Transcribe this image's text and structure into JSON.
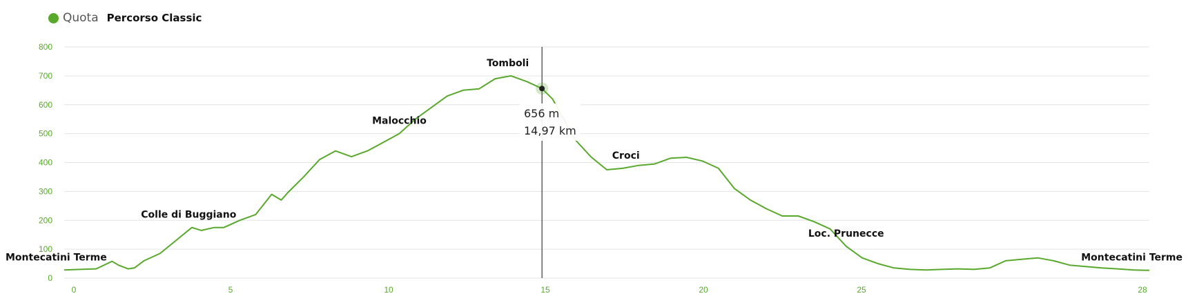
{
  "legend": {
    "series_name": "Quota",
    "route_name": "Percorso Classic",
    "color": "#57a82b"
  },
  "chart_data": {
    "type": "area",
    "series": [
      {
        "name": "Quota",
        "color": "#57a82b",
        "x": [
          0,
          0.5,
          1,
          1.5,
          1.7,
          2,
          2.2,
          2.5,
          3,
          3.5,
          4,
          4.3,
          4.7,
          5,
          5.5,
          6,
          6.5,
          6.8,
          7,
          7.5,
          8,
          8.5,
          9,
          9.5,
          10,
          10.5,
          11,
          11.5,
          12,
          12.5,
          13,
          13.5,
          14,
          14.5,
          14.97,
          15.3,
          15.6,
          16,
          16.5,
          17,
          17.5,
          18,
          18.5,
          19,
          19.5,
          20,
          20.5,
          21,
          21.5,
          22,
          22.5,
          23,
          23.5,
          24,
          24.5,
          25,
          25.5,
          26,
          26.5,
          27,
          27.5,
          28,
          28.5,
          29,
          29.5,
          30,
          30.5,
          31,
          31.5,
          32,
          32.5,
          33,
          33.5,
          34
        ],
        "y": [
          28,
          30,
          32,
          58,
          45,
          32,
          35,
          60,
          85,
          130,
          175,
          165,
          175,
          175,
          200,
          220,
          290,
          270,
          295,
          350,
          410,
          440,
          420,
          440,
          470,
          500,
          550,
          590,
          630,
          650,
          655,
          690,
          700,
          680,
          656,
          620,
          560,
          480,
          420,
          375,
          380,
          390,
          395,
          415,
          418,
          405,
          380,
          310,
          270,
          240,
          215,
          215,
          195,
          170,
          110,
          70,
          50,
          35,
          30,
          28,
          30,
          32,
          30,
          35,
          60,
          65,
          70,
          60,
          45,
          40,
          35,
          32,
          28,
          27
        ]
      }
    ],
    "xlim": [
      0,
      34
    ],
    "ylim": [
      0,
      800
    ],
    "x_ticks": [
      0,
      5,
      10,
      15,
      20,
      25,
      28
    ],
    "y_ticks": [
      0,
      100,
      200,
      300,
      400,
      500,
      600,
      700,
      800
    ],
    "grid": true,
    "annotations": [
      {
        "text": "Montecatini Terme",
        "x": 0
      },
      {
        "text": "Colle di Buggiano",
        "x": 3.9
      },
      {
        "text": "Malocchio",
        "x": 10.5
      },
      {
        "text": "Tomboli",
        "x": 13.9
      },
      {
        "text": "Croci",
        "x": 17.6
      },
      {
        "text": "Loc. Prunecce",
        "x": 24.5
      },
      {
        "text": "Montecatini Terme",
        "x": 34
      }
    ],
    "cursor": {
      "x": 14.97,
      "y": 656,
      "elevation_label": "656 m",
      "distance_label": "14,97 km"
    }
  }
}
